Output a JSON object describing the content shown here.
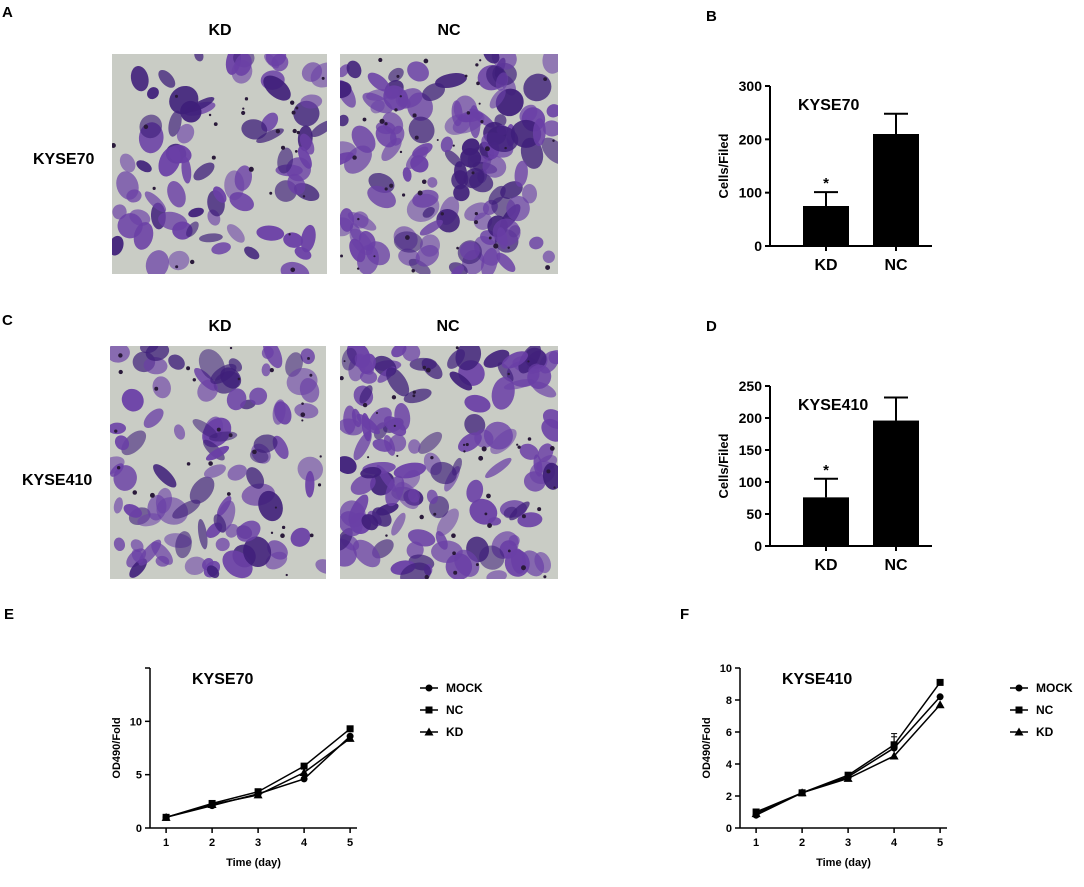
{
  "panels": {
    "A": {
      "letter": "A",
      "col_labels": [
        "KD",
        "NC"
      ],
      "row_label": "KYSE70"
    },
    "B": {
      "letter": "B"
    },
    "C": {
      "letter": "C",
      "col_labels": [
        "KD",
        "NC"
      ],
      "row_label": "KYSE410"
    },
    "D": {
      "letter": "D"
    },
    "E": {
      "letter": "E"
    },
    "F": {
      "letter": "F"
    }
  },
  "stain_colors": {
    "background": "#c9ccc5",
    "cell": "#6a3fa6",
    "dark": "#3f1f7a"
  },
  "chart_data": [
    {
      "id": "B",
      "type": "bar",
      "title": "KYSE70",
      "ylabel": "Cells/Filed",
      "categories": [
        "KD",
        "NC"
      ],
      "values": [
        75,
        210
      ],
      "errors": [
        26,
        38
      ],
      "annotations": [
        "*",
        ""
      ],
      "ylim": [
        0,
        300
      ],
      "yticks": [
        0,
        100,
        200,
        300
      ],
      "color": "#000000"
    },
    {
      "id": "D",
      "type": "bar",
      "title": "KYSE410",
      "ylabel": "Cells/Filed",
      "categories": [
        "KD",
        "NC"
      ],
      "values": [
        76,
        196
      ],
      "errors": [
        29,
        36
      ],
      "annotations": [
        "*",
        ""
      ],
      "ylim": [
        0,
        250
      ],
      "yticks": [
        0,
        50,
        100,
        150,
        200,
        250
      ],
      "color": "#000000"
    },
    {
      "id": "E",
      "type": "line",
      "title": "KYSE70",
      "xlabel": "Time (day)",
      "ylabel": "OD490/Fold",
      "x": [
        1,
        2,
        3,
        4,
        5
      ],
      "xlim": [
        0.65,
        5.15
      ],
      "ylim": [
        0,
        15
      ],
      "yticks": [
        0,
        5,
        10,
        15
      ],
      "yticklabels": [
        "0",
        "5",
        "10",
        ""
      ],
      "series": [
        {
          "name": "MOCK",
          "marker": "circle",
          "values": [
            1.0,
            2.1,
            3.2,
            4.6,
            8.6
          ]
        },
        {
          "name": "NC",
          "marker": "square",
          "values": [
            1.0,
            2.3,
            3.4,
            5.8,
            9.3
          ]
        },
        {
          "name": "KD",
          "marker": "triangle",
          "values": [
            1.0,
            2.2,
            3.1,
            5.2,
            8.4
          ]
        }
      ],
      "legend": "right"
    },
    {
      "id": "F",
      "type": "line",
      "title": "KYSE410",
      "xlabel": "Time (day)",
      "ylabel": "OD490/Fold",
      "x": [
        1,
        2,
        3,
        4,
        5
      ],
      "xlim": [
        0.65,
        5.15
      ],
      "ylim": [
        0,
        10
      ],
      "yticks": [
        0,
        2,
        4,
        6,
        8,
        10
      ],
      "yticklabels": [
        "0",
        "2",
        "4",
        "6",
        "8",
        "10"
      ],
      "series": [
        {
          "name": "MOCK",
          "marker": "circle",
          "values": [
            0.8,
            2.2,
            3.2,
            5.0,
            8.2
          ]
        },
        {
          "name": "NC",
          "marker": "square",
          "values": [
            1.0,
            2.2,
            3.3,
            5.2,
            9.1
          ]
        },
        {
          "name": "KD",
          "marker": "triangle",
          "values": [
            0.9,
            2.2,
            3.1,
            4.5,
            7.7
          ]
        }
      ],
      "errors_day4": [
        0.7,
        0.7,
        0.2
      ],
      "legend": "right"
    }
  ]
}
